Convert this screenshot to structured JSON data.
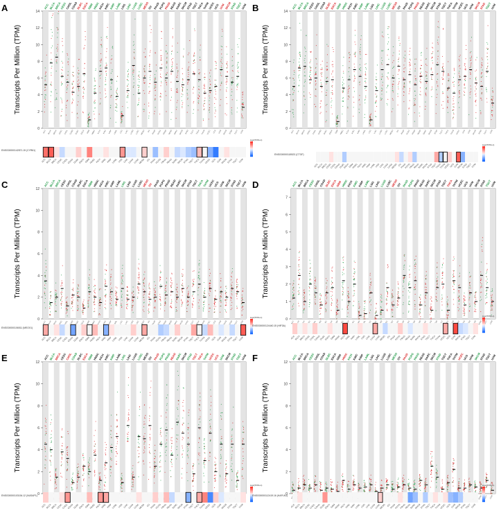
{
  "colors": {
    "tumor": "#d7191c",
    "normal": "#1a9641",
    "band": "#e4e4e4",
    "median": "#000000",
    "heat_high": "#e41a1c",
    "heat_low": "#2b6fd6"
  },
  "figure": {
    "ylabel": "Transcripts Per Million (TPM)",
    "scale_title": "log2(TPM+1)"
  },
  "chart_data": [
    {
      "type": "scatter",
      "panel": "A",
      "gene_id": "ENSG00000142871.15 (CYR61)",
      "ylim": [
        0,
        14
      ],
      "ticks": [
        0,
        2,
        4,
        6,
        8,
        10,
        12,
        14
      ],
      "header_colors": [
        "g",
        "g",
        "g",
        "g",
        "b",
        "b",
        "r",
        "r",
        "g",
        "g",
        "b",
        "b",
        "g",
        "g",
        "b",
        "g",
        "g",
        "g",
        "r",
        "b",
        "b",
        "b",
        "r",
        "b",
        "b",
        "b",
        "b",
        "b",
        "b",
        "b",
        "b",
        "b",
        "r",
        "r",
        "g",
        "g",
        "b"
      ],
      "medians": [
        5.2,
        7.8,
        8.5,
        6.2,
        5.5,
        4.3,
        5.0,
        6.5,
        1.0,
        4.2,
        6.8,
        7.2,
        5.8,
        3.8,
        1.5,
        4.5,
        7.5,
        4.2,
        6.0,
        6.8,
        5.5,
        7.2,
        6.0,
        6.8,
        5.6,
        5.2,
        5.8,
        6.5,
        5.8,
        4.2,
        4.5,
        5.0,
        7.0,
        6.2,
        5.5,
        6.2,
        2.5
      ],
      "heatmap": [
        0.7,
        0.8,
        0.1,
        -0.2,
        0.0,
        0.0,
        0.2,
        0.0,
        0.6,
        0.0,
        0.0,
        0.1,
        0.0,
        0.0,
        0.5,
        -0.1,
        -0.1,
        0.0,
        0.2,
        0.0,
        -0.4,
        0.0,
        0.2,
        0.0,
        -0.2,
        -0.1,
        -0.3,
        -0.4,
        0.3,
        0.0,
        -0.5,
        -0.9,
        0.0,
        0.1,
        0.0,
        0.0,
        0.0
      ],
      "boxed": [
        0,
        1,
        14,
        18,
        28,
        29
      ]
    },
    {
      "type": "scatter",
      "panel": "B",
      "gene_id": "ENSG00000118523 (CTGF)",
      "ylim": [
        0,
        14
      ],
      "ticks": [
        0,
        2,
        4,
        6,
        8,
        10,
        12,
        14
      ],
      "header_colors": [
        "g",
        "g",
        "g",
        "b",
        "b",
        "b",
        "r",
        "r",
        "g",
        "g",
        "b",
        "b",
        "g",
        "g",
        "b",
        "g",
        "g",
        "g",
        "r",
        "b",
        "b",
        "b",
        "r",
        "b",
        "b",
        "b",
        "b",
        "b",
        "b",
        "b",
        "b",
        "b",
        "b",
        "r",
        "r",
        "g",
        "b"
      ],
      "medians": [
        5.0,
        7.2,
        7.4,
        5.8,
        6.0,
        5.0,
        5.6,
        5.8,
        0.8,
        4.8,
        5.8,
        7.0,
        6.2,
        5.0,
        1.0,
        4.5,
        7.0,
        7.6,
        6.0,
        7.4,
        5.8,
        6.4,
        5.2,
        6.2,
        5.6,
        6.4,
        7.6,
        6.8,
        4.8,
        4.2,
        5.8,
        6.2,
        7.0,
        5.4,
        5.0,
        6.8,
        3.0
      ],
      "heatmap": [
        0.0,
        0.0,
        0.0,
        0.1,
        0.0,
        0.0,
        -0.3,
        0.0,
        0.0,
        0.0,
        0.0,
        0.0,
        0.0,
        0.0,
        0.0,
        0.0,
        0.0,
        0.0,
        0.1,
        -0.2,
        0.0,
        0.1,
        -0.3,
        0.0,
        0.0,
        0.0,
        0.0,
        0.4,
        -0.3,
        0.0,
        0.2,
        0.0,
        0.8,
        -0.5,
        0.0,
        0.0,
        0.0
      ],
      "boxed": [
        28,
        29,
        32
      ]
    },
    {
      "type": "scatter",
      "panel": "C",
      "gene_id": "ENSG00000106511 (MEOX1)",
      "ylim": [
        0,
        12
      ],
      "ticks": [
        0,
        2,
        4,
        6,
        8,
        10,
        12
      ],
      "header_colors": [
        "g",
        "g",
        "g",
        "b",
        "b",
        "b",
        "b",
        "b",
        "g",
        "b",
        "b",
        "b",
        "b",
        "b",
        "g",
        "b",
        "b",
        "b",
        "r",
        "r",
        "b",
        "b",
        "b",
        "b",
        "b",
        "b",
        "b",
        "b",
        "g",
        "g",
        "b",
        "b",
        "b",
        "b",
        "b",
        "b",
        "b"
      ],
      "medians": [
        3.5,
        1.5,
        2.0,
        2.8,
        1.2,
        2.2,
        2.0,
        1.0,
        2.5,
        2.0,
        1.5,
        3.0,
        2.5,
        1.8,
        2.8,
        1.8,
        2.0,
        3.2,
        2.5,
        1.8,
        2.0,
        3.0,
        2.2,
        2.5,
        2.0,
        2.8,
        2.0,
        2.5,
        3.2,
        2.0,
        2.8,
        1.8,
        2.5,
        2.0,
        2.8,
        2.5,
        1.5
      ],
      "heatmap": [
        0.4,
        0.0,
        0.1,
        -0.2,
        0.0,
        -0.6,
        0.0,
        0.2,
        0.0,
        0.3,
        0.0,
        -0.5,
        0.1,
        0.0,
        0.0,
        0.0,
        0.2,
        0.0,
        0.4,
        0.0,
        0.0,
        -0.3,
        -0.2,
        0.0,
        0.2,
        0.0,
        0.0,
        0.4,
        0.0,
        -0.2,
        0.3,
        0.0,
        -0.1,
        0.0,
        -0.2,
        0.0,
        0.8
      ],
      "boxed": [
        0,
        5,
        8,
        11,
        18,
        28,
        36
      ]
    },
    {
      "type": "scatter",
      "panel": "D",
      "gene_id": "ENSG00000124440.15 (HIF3A)",
      "ylim": [
        0,
        7.5
      ],
      "ticks": [
        0,
        1,
        2,
        3,
        4,
        5,
        6,
        7
      ],
      "header_colors": [
        "g",
        "b",
        "b",
        "g",
        "b",
        "b",
        "r",
        "r",
        "r",
        "g",
        "b",
        "g",
        "b",
        "g",
        "b",
        "b",
        "g",
        "b",
        "r",
        "b",
        "g",
        "g",
        "b",
        "b",
        "b",
        "b",
        "b",
        "b",
        "r",
        "b",
        "b",
        "b",
        "b",
        "b",
        "b",
        "g",
        "b"
      ],
      "medians": [
        1.2,
        2.5,
        1.0,
        2.0,
        1.5,
        0.8,
        1.5,
        1.8,
        0.5,
        2.2,
        1.0,
        2.0,
        0.2,
        0.3,
        1.5,
        0.2,
        0.5,
        1.8,
        0.8,
        1.2,
        2.5,
        1.8,
        2.2,
        0.8,
        1.5,
        0.5,
        1.8,
        2.0,
        0.5,
        2.2,
        1.8,
        0.8,
        1.5,
        1.0,
        2.5,
        1.8,
        1.0
      ],
      "heatmap": [
        0.2,
        0.0,
        0.1,
        0.0,
        0.2,
        0.0,
        0.0,
        0.1,
        0.0,
        0.0,
        0.9,
        0.0,
        0.0,
        0.1,
        0.0,
        0.0,
        0.4,
        0.0,
        -0.2,
        0.0,
        0.0,
        0.2,
        0.0,
        -0.1,
        0.0,
        0.0,
        0.1,
        0.0,
        0.0,
        0.0,
        0.4,
        0.0,
        0.9,
        -0.2,
        -0.1,
        0.0,
        0.1
      ],
      "boxed": [
        10,
        16,
        30,
        32
      ]
    },
    {
      "type": "scatter",
      "panel": "E",
      "gene_id": "ENSG00000103154.12 (NUSAP1)",
      "ylim": [
        0,
        12
      ],
      "ticks": [
        0,
        2,
        4,
        6,
        8,
        10,
        12
      ],
      "header_colors": [
        "b",
        "g",
        "r",
        "b",
        "r",
        "g",
        "b",
        "r",
        "g",
        "b",
        "b",
        "b",
        "g",
        "b",
        "g",
        "b",
        "b",
        "g",
        "b",
        "b",
        "r",
        "g",
        "g",
        "r",
        "g",
        "b",
        "g",
        "r",
        "r",
        "g",
        "r",
        "r",
        "g",
        "b",
        "g",
        "g",
        "b"
      ],
      "medians": [
        4.5,
        4.0,
        1.5,
        3.8,
        3.2,
        1.0,
        1.5,
        2.5,
        2.0,
        3.5,
        1.2,
        2.8,
        4.2,
        5.2,
        1.0,
        6.2,
        1.5,
        5.2,
        5.0,
        6.2,
        2.5,
        4.5,
        5.8,
        3.5,
        6.5,
        5.5,
        4.5,
        1.8,
        6.0,
        3.0,
        5.5,
        2.0,
        4.5,
        1.8,
        4.5,
        1.2,
        4.5
      ],
      "heatmap": [
        0.2,
        0.0,
        0.0,
        0.1,
        0.5,
        0.0,
        0.0,
        0.0,
        0.3,
        0.0,
        0.5,
        0.4,
        0.0,
        0.0,
        0.0,
        0.0,
        0.0,
        0.1,
        0.0,
        0.0,
        0.2,
        0.0,
        0.3,
        -0.2,
        0.0,
        0.0,
        -0.5,
        0.0,
        0.4,
        0.6,
        -0.8,
        0.2,
        -0.1,
        0.0,
        0.0,
        0.0,
        0.1
      ],
      "boxed": [
        4,
        10,
        11,
        26,
        28
      ]
    },
    {
      "type": "scatter",
      "panel": "F",
      "gene_id": "ENSG00000112419.16 (HAPLN1)",
      "ylim": [
        0,
        12
      ],
      "ticks": [
        0,
        2,
        4,
        6,
        8,
        10,
        12
      ],
      "header_colors": [
        "g",
        "b",
        "b",
        "g",
        "b",
        "b",
        "g",
        "b",
        "b",
        "r",
        "g",
        "b",
        "b",
        "g",
        "b",
        "b",
        "b",
        "b",
        "g",
        "b",
        "r",
        "g",
        "g",
        "b",
        "b",
        "b",
        "g",
        "b",
        "b",
        "b",
        "r",
        "b",
        "b",
        "g",
        "b",
        "b",
        "b"
      ],
      "medians": [
        0.3,
        0.5,
        0.8,
        0.5,
        0.8,
        0.3,
        0.5,
        0.4,
        0.2,
        1.2,
        0.4,
        0.8,
        0.5,
        0.6,
        0.8,
        0.2,
        0.5,
        0.8,
        0.4,
        0.6,
        0.8,
        0.5,
        0.4,
        1.2,
        0.8,
        2.5,
        1.5,
        0.4,
        1.0,
        2.2,
        0.5,
        0.5,
        0.8,
        0.6,
        0.5,
        1.2,
        0.3
      ],
      "heatmap": [
        0.0,
        0.1,
        0.0,
        0.0,
        0.0,
        0.0,
        0.5,
        0.0,
        0.0,
        0.0,
        0.0,
        0.0,
        0.0,
        0.0,
        0.0,
        0.0,
        0.0,
        0.2,
        0.0,
        0.0,
        0.0,
        0.1,
        0.0,
        -0.6,
        -0.4,
        0.0,
        -0.3,
        0.0,
        0.1,
        0.0,
        0.1,
        -0.4,
        -0.5,
        -0.3,
        0.0,
        0.0,
        0.0
      ],
      "boxed": [
        17
      ]
    }
  ],
  "cancers": [
    "ACC",
    "BLCA",
    "BRCA",
    "CESC",
    "CHOL",
    "COAD",
    "DLBC",
    "ESCA",
    "GBM",
    "HNSC",
    "KICH",
    "KIRC",
    "KIRP",
    "LAML",
    "LGG",
    "LIHC",
    "LUAD",
    "LUSC",
    "MESO",
    "OV",
    "PAAD",
    "PCPG",
    "PRAD",
    "READ",
    "SARC",
    "SKCM",
    "STAD",
    "TGCT",
    "THCA",
    "THYM",
    "UCEC",
    "UCS",
    "UVM",
    "SKCM",
    "STAD",
    "TGCT",
    "UVM"
  ]
}
